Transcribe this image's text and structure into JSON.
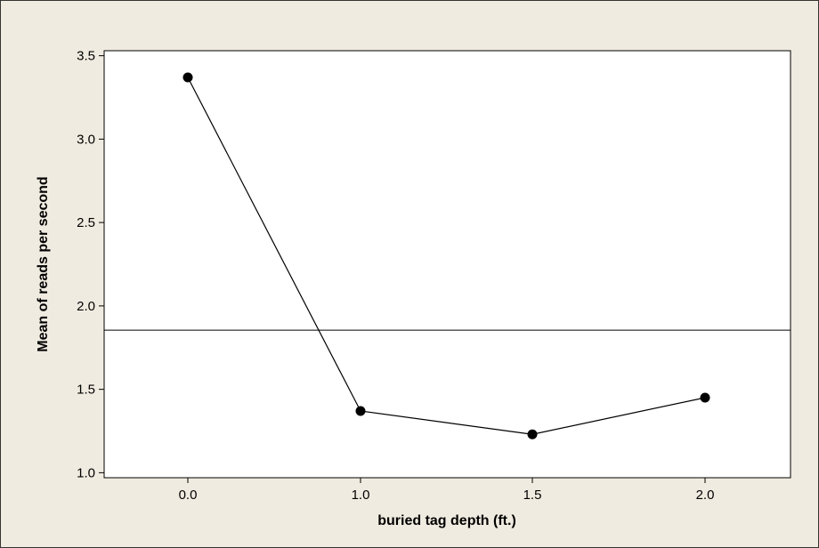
{
  "chart_data": {
    "type": "line",
    "title": "",
    "xlabel": "buried tag depth (ft.)",
    "ylabel": "Mean of reads per second",
    "categories": [
      "0.0",
      "1.0",
      "1.5",
      "2.0"
    ],
    "series": [
      {
        "values": [
          3.37,
          1.37,
          1.23,
          1.45
        ]
      }
    ],
    "reference_line": {
      "y": 1.855
    },
    "ylim": [
      0.97,
      3.53
    ],
    "yticks": [
      1.0,
      1.5,
      2.0,
      2.5,
      3.0,
      3.5
    ],
    "ytick_labels": [
      "1.0",
      "1.5",
      "2.0",
      "2.5",
      "3.0",
      "3.5"
    ],
    "grid": false,
    "legend": "none",
    "colors": {
      "background": "#f0ebe0",
      "plot_area": "#ffffff",
      "line": "#000000",
      "marker": "#000000",
      "border": "#333333"
    }
  }
}
